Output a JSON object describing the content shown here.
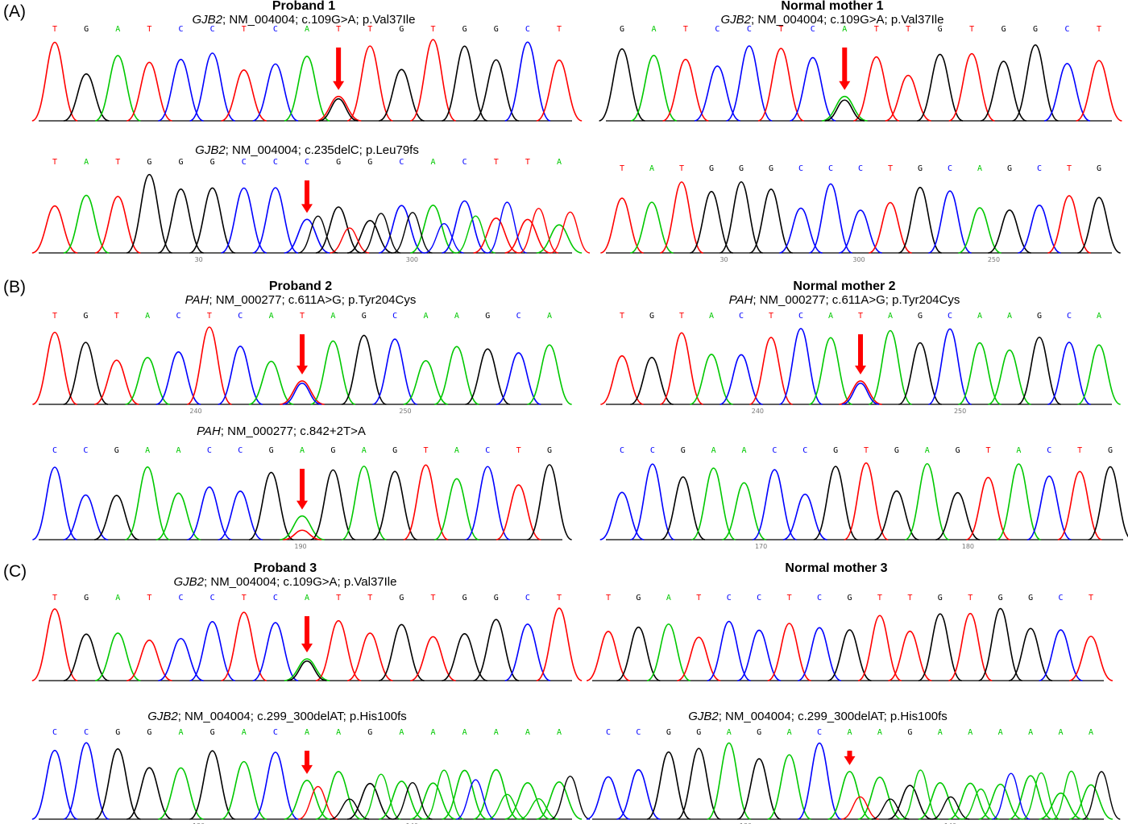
{
  "figure": {
    "colors": {
      "A": "#00c800",
      "C": "#0000ff",
      "G": "#000000",
      "T": "#ff0000",
      "arrow": "#ff0000",
      "baseline": "#000000"
    },
    "sections": [
      {
        "label": "(A)"
      },
      {
        "label": "(B)"
      },
      {
        "label": "(C)"
      }
    ],
    "panels": [
      {
        "id": "a1",
        "heading": "Proband 1",
        "gene": "GJB2",
        "variant": "; NM_004004; c.109G>A; p.Val37Ile",
        "sequence": "TGATCCTCATTGTGGCT",
        "arrow_index": 9,
        "secondary": {
          "index": 9,
          "base": "G",
          "scale": 0.9
        },
        "axis_ticks": []
      },
      {
        "id": "a2",
        "heading": "Normal mother 1",
        "gene": "GJB2",
        "variant": "; NM_004004; c.109G>A; p.Val37Ile",
        "sequence": "GATCCTCATTGTGGCT",
        "arrow_index": 7,
        "secondary": {
          "index": 7,
          "base": "G",
          "scale": 0.85
        },
        "axis_ticks": []
      },
      {
        "id": "a3",
        "heading": "",
        "gene": "GJB2",
        "variant": "; NM_004004; c.235delC; p.Leu79fs",
        "sequence": "TATGGGCCCGGCACTTA",
        "arrow_index": 8,
        "secondary_from": {
          "index": 8,
          "sequence": "GTGGCACTTAG"
        },
        "axis_ticks": [
          "30",
          "300"
        ]
      },
      {
        "id": "a4",
        "heading": "",
        "gene": "",
        "variant": "",
        "sequence": "TATGGGCCCTGCAGCTG",
        "axis_ticks": [
          "30",
          "300",
          "250"
        ]
      },
      {
        "id": "b1",
        "heading": "Proband 2",
        "gene": "PAH",
        "variant": "; NM_000277; c.611A>G; p.Tyr204Cys",
        "sequence": "TGTACTCATAGCAAGCA",
        "arrow_index": 8,
        "secondary": {
          "index": 8,
          "base": "C",
          "scale": 0.9
        },
        "axis_ticks": [
          "240",
          "250"
        ]
      },
      {
        "id": "b2",
        "heading": "Normal mother 2",
        "gene": "PAH",
        "variant": "; NM_000277; c.611A>G; p.Tyr204Cys",
        "sequence": "TGTACTCATAGCAAGCA",
        "arrow_index": 8,
        "secondary": {
          "index": 8,
          "base": "C",
          "scale": 0.9
        },
        "axis_ticks": [
          "240",
          "250"
        ]
      },
      {
        "id": "b3",
        "heading": "",
        "gene": "PAH",
        "variant": "; NM_000277; c.842+2T>A",
        "sequence": "CCGAACCGAGAGTACTG",
        "arrow_index": 8,
        "secondary": {
          "index": 8,
          "base": "T",
          "scale": 0.4
        },
        "axis_ticks": [
          "190"
        ]
      },
      {
        "id": "b4",
        "heading": "",
        "gene": "",
        "variant": "",
        "sequence": "CCGAACCGTGAGTACTG",
        "axis_ticks": [
          "170",
          "180"
        ]
      },
      {
        "id": "c1",
        "heading": "Proband 3",
        "gene": "GJB2",
        "variant": "; NM_004004; c.109G>A; p.Val37Ile",
        "sequence": "TGATCCTCATTGTGGCT",
        "arrow_index": 8,
        "secondary": {
          "index": 8,
          "base": "G",
          "scale": 0.9
        },
        "axis_ticks": []
      },
      {
        "id": "c2",
        "heading": "Normal mother 3",
        "gene": "",
        "variant": "",
        "sequence": "TGATCCTCGTTGTGGCT",
        "axis_ticks": []
      },
      {
        "id": "c3",
        "heading": "",
        "gene": "GJB2",
        "variant": "; NM_004004; c.299_300delAT; p.His100fs",
        "sequence": "CCGGAGACAAGAAAAAA",
        "arrow_index": 8,
        "secondary_from": {
          "index": 8,
          "sequence": "TGAGACAAG"
        },
        "axis_ticks": [
          "130",
          "140"
        ]
      },
      {
        "id": "c4",
        "heading": "",
        "gene": "GJB2",
        "variant": "; NM_004004; c.299_300delAT; p.His100fs",
        "sequence": "CCGGAGACAAGAAAAAA",
        "arrow_index": 8,
        "secondary_from": {
          "index": 8,
          "sequence": "TGAGACAAG"
        },
        "axis_ticks": [
          "130",
          "140"
        ]
      }
    ]
  }
}
